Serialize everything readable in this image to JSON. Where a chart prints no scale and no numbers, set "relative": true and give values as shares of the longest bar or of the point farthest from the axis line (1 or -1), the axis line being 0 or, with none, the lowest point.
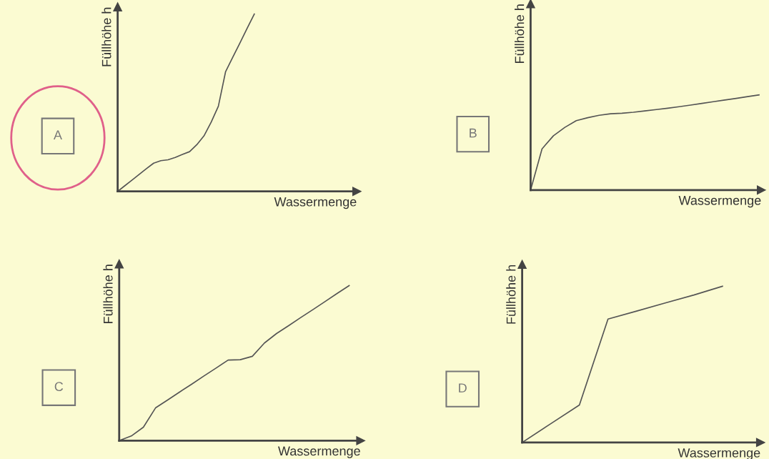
{
  "chart_data": [
    {
      "type": "line",
      "relative": true,
      "xlabel": "Wassermenge",
      "ylabel": "Füllhöhe h",
      "annotations": [
        "A"
      ],
      "line_style": "solid",
      "categories": [
        null,
        null,
        null,
        null,
        null,
        null,
        null,
        null,
        null,
        null,
        null,
        null,
        null,
        null,
        null,
        null,
        null,
        null,
        null,
        null
      ],
      "series": [
        {
          "color": "#555555",
          "values": [
            0,
            0.032,
            0.064,
            0.096,
            0.128,
            0.159,
            0.173,
            0.178,
            0.191,
            0.208,
            0.224,
            0.263,
            0.313,
            0.39,
            0.48,
            0.674,
            0.756,
            0.837,
            0.919,
            1
          ]
        }
      ]
    },
    {
      "type": "line",
      "relative": true,
      "xlabel": "Wassermenge",
      "ylabel": "Füllhöhe h",
      "annotations": [
        "B"
      ],
      "line_style": "solid",
      "categories": [
        null,
        null,
        null,
        null,
        null,
        null,
        null,
        null,
        null,
        null,
        null,
        null,
        null,
        null,
        null,
        null,
        null,
        null,
        null,
        null,
        null
      ],
      "series": [
        {
          "color": "#555555",
          "values": [
            0,
            0.433,
            0.571,
            0.659,
            0.73,
            0.761,
            0.786,
            0.802,
            0.808,
            0.818,
            0.832,
            0.846,
            0.86,
            0.876,
            0.893,
            0.911,
            0.929,
            0.947,
            0.964,
            0.982,
            1
          ]
        }
      ]
    },
    {
      "type": "line",
      "relative": true,
      "xlabel": "Wassermenge",
      "ylabel": "Füllhöhe h",
      "annotations": [
        "C"
      ],
      "line_style": "solid",
      "categories": [
        null,
        null,
        null,
        null,
        null,
        null,
        null,
        null,
        null,
        null,
        null,
        null,
        null,
        null,
        null,
        null,
        null,
        null,
        null,
        null
      ],
      "series": [
        {
          "color": "#555555",
          "values": [
            0,
            0.03,
            0.087,
            0.211,
            0.262,
            0.314,
            0.365,
            0.417,
            0.468,
            0.52,
            0.522,
            0.544,
            0.63,
            0.691,
            0.742,
            0.794,
            0.845,
            0.897,
            0.949,
            1
          ]
        }
      ]
    },
    {
      "type": "line",
      "relative": true,
      "xlabel": "Wassermenge",
      "ylabel": "Füllhöhe h",
      "annotations": [
        "D"
      ],
      "line_style": "solid",
      "categories": [
        null,
        null,
        null,
        null,
        null,
        null,
        null,
        null
      ],
      "series": [
        {
          "color": "#555555",
          "values": [
            0,
            0.12,
            0.24,
            0.79,
            0.841,
            0.893,
            0.944,
            1
          ]
        }
      ]
    }
  ]
}
